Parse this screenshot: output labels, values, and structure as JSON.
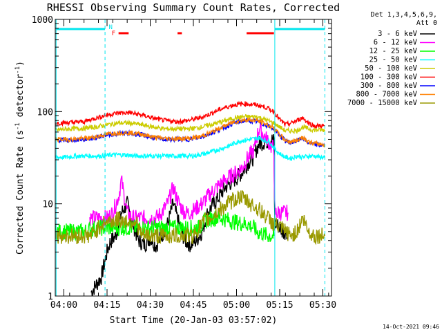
{
  "chart_data": {
    "type": "line",
    "title": "RHESSI Observing Summary Count Rates, Corrected",
    "xlabel": "Start Time (20-Jan-03 03:57:02)",
    "ylabel_main": "Corrected Count Rate (s",
    "ylabel_sup1": "-1",
    "ylabel_mid": " detector",
    "ylabel_sup2": "-1",
    "ylabel_end": ")",
    "timestamp": "14-Oct-2021 09:46",
    "x_ticks": [
      "04:00",
      "04:15",
      "04:30",
      "04:45",
      "05:00",
      "05:15",
      "05:30"
    ],
    "x_tick_minutes": [
      3,
      18,
      33,
      48,
      63,
      78,
      93
    ],
    "x_range_minutes": [
      0,
      96
    ],
    "y_scale": "log",
    "y_range": [
      1,
      1000
    ],
    "y_ticks": [
      "1",
      "10",
      "100",
      "1000"
    ],
    "legend_header": [
      "Det 1,3,4,5,6,9,",
      "Att 0"
    ],
    "legend_position": "right",
    "flag_labels": {
      "N": "N",
      "F": "F"
    },
    "flag_colors": {
      "N": "#00e5ee",
      "F": "#ff0000"
    },
    "vertical_markers_minutes": [
      0.3,
      17.3,
      76.3,
      93.7
    ],
    "vertical_markers_solid": [
      0.3,
      76.3
    ],
    "series": [
      {
        "name": "3 - 6 keV",
        "color": "#000000",
        "t": [
          12.5,
          14,
          16,
          17,
          18,
          19,
          21,
          23,
          25,
          27,
          29,
          31,
          33,
          35,
          37,
          39,
          41,
          43,
          45,
          47,
          49,
          51,
          53,
          55,
          57,
          59,
          61,
          63,
          65,
          67,
          69,
          70,
          71,
          72,
          73,
          74,
          75,
          76,
          76.2,
          76.4,
          77,
          78,
          79,
          80,
          81
        ],
        "v": [
          1.1,
          1.3,
          1.6,
          2.2,
          3.0,
          3.8,
          4.5,
          8,
          10,
          6,
          4,
          3.6,
          4.3,
          3.5,
          4.5,
          6,
          10,
          6,
          4,
          3.6,
          4,
          5,
          8,
          10,
          12,
          15,
          17,
          19,
          22,
          28,
          32,
          40,
          45,
          46,
          47,
          48,
          50,
          48,
          9,
          6,
          6,
          5.5,
          5,
          5,
          5
        ]
      },
      {
        "name": "6 - 12 keV",
        "color": "#ff00ff",
        "t": [
          12,
          14,
          16,
          18,
          20,
          22,
          23,
          24,
          25,
          27,
          29,
          31,
          33,
          35,
          37,
          39,
          41,
          43,
          45,
          47,
          49,
          51,
          53,
          55,
          57,
          59,
          61,
          63,
          65,
          67,
          69,
          70,
          71,
          72,
          73,
          74,
          75,
          76,
          76.2,
          76.4,
          77,
          78,
          79,
          80,
          81
        ],
        "v": [
          7,
          7,
          7,
          7,
          8,
          12,
          18,
          12,
          8,
          7,
          7,
          7,
          7,
          7,
          8,
          10,
          15,
          10,
          8,
          8,
          9,
          10,
          12,
          14,
          16,
          18,
          20,
          22,
          25,
          32,
          38,
          52,
          68,
          58,
          52,
          48,
          42,
          40,
          10,
          8,
          8,
          8,
          8,
          8,
          8
        ]
      },
      {
        "name": "12 - 25 keV",
        "color": "#00ff00",
        "t": [
          0,
          5,
          10,
          14,
          18,
          22,
          26,
          30,
          34,
          38,
          42,
          46,
          50,
          52,
          55,
          58,
          61,
          64,
          67,
          69,
          70,
          71,
          72,
          73,
          74,
          75,
          76
        ],
        "v": [
          5,
          5,
          5,
          5.5,
          5.5,
          5.5,
          5.5,
          5.5,
          5.5,
          5.5,
          5.5,
          5.5,
          5.5,
          6.5,
          7,
          7,
          6.5,
          6.2,
          6,
          5.5,
          5,
          4.8,
          4.8,
          4.6,
          4.5,
          4.5,
          4.5
        ]
      },
      {
        "name": "25 - 50 keV",
        "color": "#00ffff",
        "t": [
          0,
          4,
          8,
          12,
          16,
          20,
          24,
          28,
          32,
          36,
          40,
          44,
          48,
          52,
          56,
          60,
          64,
          68,
          71,
          73,
          74.5,
          76,
          78,
          80,
          82,
          84,
          86,
          88,
          90,
          92,
          93.7
        ],
        "v": [
          32,
          32,
          33,
          33,
          33,
          34,
          34,
          33,
          33,
          33,
          33,
          33,
          33,
          35,
          38,
          42,
          48,
          50,
          52,
          48,
          47,
          40,
          35,
          32,
          31,
          33,
          32,
          33,
          33,
          32,
          32
        ]
      },
      {
        "name": "50 - 100 keV",
        "color": "#cccc00",
        "t": [
          0,
          5,
          10,
          14,
          18,
          22,
          26,
          30,
          34,
          38,
          42,
          46,
          50,
          54,
          58,
          62,
          66,
          70,
          73,
          76,
          78,
          80,
          82,
          84,
          86,
          88,
          90,
          93.7
        ],
        "v": [
          63,
          65,
          66,
          68,
          72,
          75,
          75,
          72,
          68,
          65,
          65,
          65,
          67,
          72,
          78,
          85,
          88,
          88,
          82,
          75,
          68,
          62,
          62,
          62,
          68,
          65,
          63,
          63
        ]
      },
      {
        "name": "100 - 300 keV",
        "color": "#ff0000",
        "t": [
          0,
          5,
          10,
          14,
          18,
          22,
          26,
          30,
          34,
          38,
          42,
          46,
          50,
          54,
          58,
          62,
          66,
          70,
          73,
          76,
          78,
          80,
          82,
          84,
          86,
          88,
          90,
          93.7
        ],
        "v": [
          75,
          76,
          78,
          85,
          92,
          97,
          97,
          92,
          85,
          80,
          78,
          80,
          85,
          95,
          108,
          118,
          122,
          118,
          112,
          100,
          82,
          72,
          75,
          80,
          86,
          75,
          70,
          70
        ]
      },
      {
        "name": "300 - 800 keV",
        "color": "#0000ff",
        "t": [
          0,
          5,
          10,
          14,
          18,
          22,
          26,
          30,
          34,
          38,
          42,
          46,
          50,
          54,
          58,
          62,
          66,
          70,
          73,
          76,
          78,
          80,
          82,
          84,
          86,
          88,
          90,
          93.7
        ],
        "v": [
          49,
          49,
          50,
          52,
          56,
          58,
          58,
          56,
          52,
          50,
          50,
          50,
          52,
          58,
          66,
          75,
          80,
          78,
          72,
          65,
          55,
          48,
          46,
          48,
          52,
          46,
          44,
          43
        ]
      },
      {
        "name": "800 - 7000 keV",
        "color": "#ff8000",
        "t": [
          0,
          5,
          10,
          14,
          18,
          22,
          26,
          30,
          34,
          38,
          42,
          46,
          50,
          54,
          58,
          62,
          66,
          70,
          73,
          76,
          78,
          80,
          82,
          84,
          86,
          88,
          90,
          93.7
        ],
        "v": [
          50,
          50,
          51,
          53,
          57,
          59,
          59,
          57,
          53,
          51,
          51,
          51,
          53,
          59,
          68,
          77,
          82,
          80,
          74,
          66,
          56,
          49,
          47,
          49,
          53,
          47,
          45,
          44
        ]
      },
      {
        "name": "7000 - 15000 keV",
        "color": "#999900",
        "t": [
          0,
          4,
          8,
          12,
          14,
          16,
          18,
          20,
          22,
          24,
          26,
          28,
          30,
          32,
          34,
          36,
          38,
          40,
          42,
          44,
          46,
          48,
          50,
          52,
          54,
          56,
          58,
          60,
          62,
          64,
          66,
          68,
          70,
          72,
          74,
          76,
          78,
          80,
          82,
          84,
          86,
          88,
          90,
          93.7
        ],
        "v": [
          4.5,
          4.5,
          4.5,
          4.5,
          5,
          6,
          6.5,
          6.5,
          6.8,
          6.5,
          6.5,
          6.5,
          4.5,
          4.5,
          4.5,
          4.5,
          4.5,
          4.5,
          4.5,
          4.5,
          4.5,
          4.5,
          5.5,
          6.5,
          7,
          8,
          9,
          10,
          11,
          12,
          11,
          10,
          9,
          8,
          7,
          6,
          5.5,
          5,
          4.5,
          5,
          7,
          5,
          4.5,
          4.5
        ]
      }
    ]
  }
}
